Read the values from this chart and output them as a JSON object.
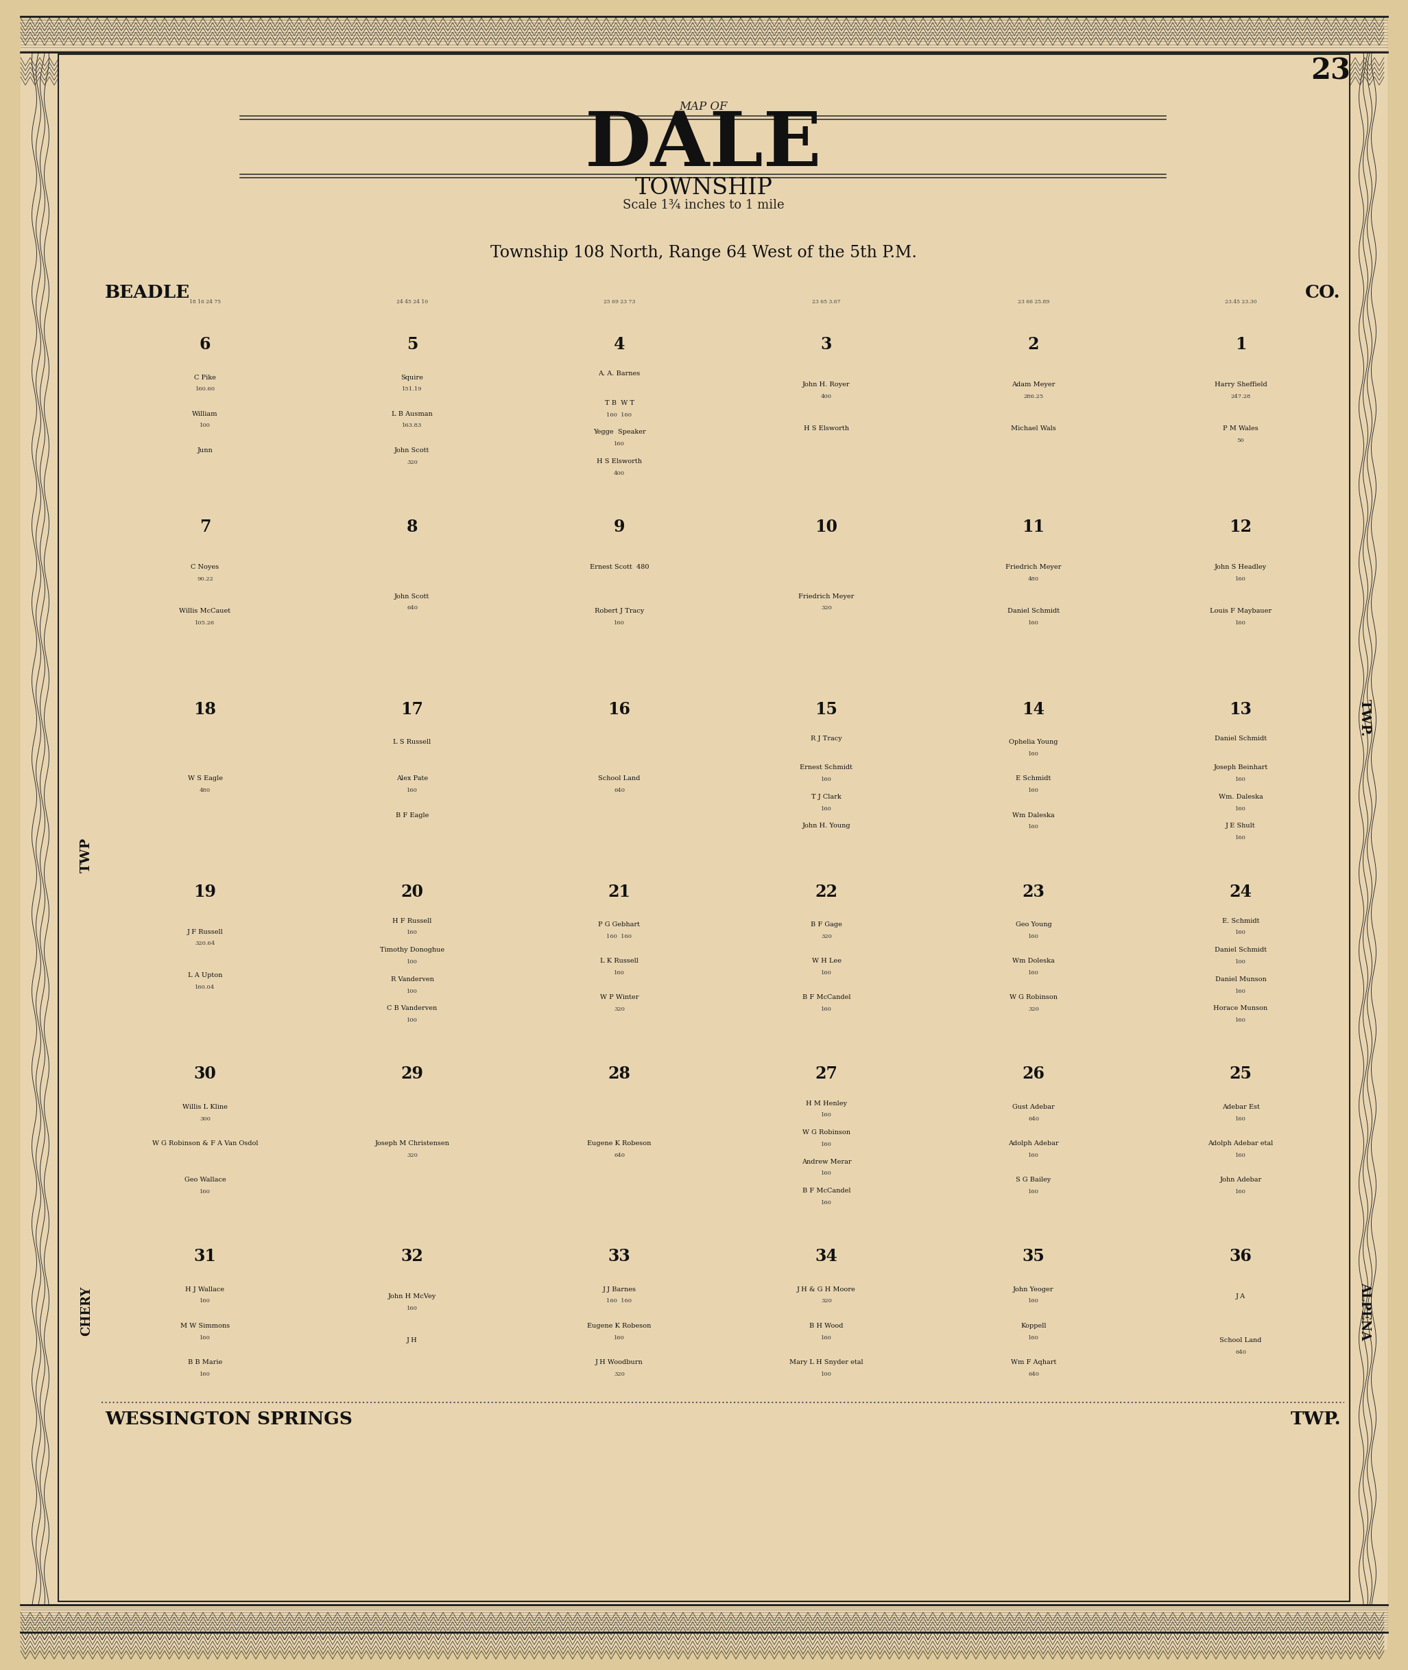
{
  "bg_color": "#ddc99a",
  "page_bg": "#e8d5b0",
  "map_bg": "#f5c0c0",
  "border_color": "#2a2a2a",
  "title_main": "DALE",
  "title_sub": "TOWNSHIP",
  "title_scale": "Scale 1¾ inches to 1 mile",
  "title_township": "Township 108 North, Range 64 West of the 5th P.M.",
  "page_number": "23",
  "label_top_left": "BEADLE",
  "label_top_right": "CO.",
  "label_left": "TWP",
  "label_right": "TWP.",
  "label_bottom_left": "WESSINGTON SPRINGS",
  "label_bottom_right": "TWP.",
  "label_left2": "CHERY",
  "label_right2": "ALPENA",
  "sections_data": [
    [
      0,
      0,
      "6",
      [
        "C Pike",
        "William",
        "Junn"
      ],
      [
        "160.60",
        "100"
      ]
    ],
    [
      1,
      0,
      "5",
      [
        "Squire",
        "L B Ausman",
        "John Scott"
      ],
      [
        "151.19",
        "163.83",
        "320"
      ]
    ],
    [
      2,
      0,
      "4",
      [
        "A. A. Barnes",
        "T B  W T",
        "Yegge  Speaker",
        "H S Elsworth"
      ],
      [
        "",
        "160  160",
        "160",
        "400"
      ]
    ],
    [
      3,
      0,
      "3",
      [
        "John H. Royer",
        "H S Elsworth"
      ],
      [
        "400",
        ""
      ]
    ],
    [
      4,
      0,
      "2",
      [
        "Adam Meyer",
        "Michael Wals"
      ],
      [
        "286.25",
        ""
      ]
    ],
    [
      5,
      0,
      "1",
      [
        "Harry Sheffield",
        "P M Wales"
      ],
      [
        "247.28",
        "50"
      ]
    ],
    [
      0,
      1,
      "7",
      [
        "C Noyes",
        "Willis McCauet"
      ],
      [
        "90.22",
        "105.26"
      ]
    ],
    [
      1,
      1,
      "8",
      [
        "John Scott"
      ],
      [
        "640"
      ]
    ],
    [
      2,
      1,
      "9",
      [
        "Ernest Scott  480",
        "Robert J Tracy"
      ],
      [
        "",
        "160"
      ]
    ],
    [
      3,
      1,
      "10",
      [
        "Friedrich Meyer"
      ],
      [
        "320"
      ]
    ],
    [
      4,
      1,
      "11",
      [
        "Friedrich Meyer",
        "Daniel Schmidt"
      ],
      [
        "480",
        "160"
      ]
    ],
    [
      5,
      1,
      "12",
      [
        "John S Headley",
        "Louis F Maybauer"
      ],
      [
        "160",
        "160"
      ]
    ],
    [
      0,
      2,
      "18",
      [
        "W S Eagle"
      ],
      [
        "480"
      ]
    ],
    [
      1,
      2,
      "17",
      [
        "L S Russell",
        "Alex Pate",
        "B F Eagle"
      ],
      [
        "",
        "160",
        ""
      ]
    ],
    [
      2,
      2,
      "16",
      [
        "School Land"
      ],
      [
        "640"
      ]
    ],
    [
      3,
      2,
      "15",
      [
        "R J Tracy",
        "Ernest Schmidt",
        "T J Clark",
        "John H. Young"
      ],
      [
        "",
        "160",
        "160",
        ""
      ]
    ],
    [
      4,
      2,
      "14",
      [
        "Ophelia Young",
        "E Schmidt",
        "Wm Daleska"
      ],
      [
        "160",
        "160",
        "160"
      ]
    ],
    [
      5,
      2,
      "13",
      [
        "Daniel Schmidt",
        "Joseph Beinhart",
        "Wm. Daleska",
        "J E Shult"
      ],
      [
        "",
        "160",
        "160",
        "160"
      ]
    ],
    [
      0,
      3,
      "19",
      [
        "J F Russell",
        "L A Upton"
      ],
      [
        "320.64",
        "160.04"
      ]
    ],
    [
      1,
      3,
      "20",
      [
        "H F Russell",
        "Timothy Donoghue",
        "R Vanderven",
        "C B Vanderven"
      ],
      [
        "160",
        "100",
        "100",
        "100"
      ]
    ],
    [
      2,
      3,
      "21",
      [
        "P G Gebhart",
        "L K Russell",
        "W P Winter"
      ],
      [
        "160  160",
        "160",
        "320"
      ]
    ],
    [
      3,
      3,
      "22",
      [
        "B F Gage",
        "W H Lee",
        "B F McCandel"
      ],
      [
        "320",
        "160",
        "160"
      ]
    ],
    [
      4,
      3,
      "23",
      [
        "Geo Young",
        "Wm Doleska",
        "W G Robinson"
      ],
      [
        "160",
        "160",
        "320"
      ]
    ],
    [
      5,
      3,
      "24",
      [
        "E. Schmidt",
        "Daniel Schmidt",
        "Daniel Munson",
        "Horace Munson"
      ],
      [
        "160",
        "100",
        "160",
        "160"
      ]
    ],
    [
      0,
      4,
      "30",
      [
        "Willis L Kline",
        "W G Robinson & F A Van Osdol",
        "Geo Wallace"
      ],
      [
        "300",
        "",
        "160"
      ]
    ],
    [
      1,
      4,
      "29",
      [
        "Joseph M Christensen"
      ],
      [
        "320"
      ]
    ],
    [
      2,
      4,
      "28",
      [
        "Eugene K Robeson"
      ],
      [
        "640"
      ]
    ],
    [
      3,
      4,
      "27",
      [
        "H M Henley",
        "W G Robinson",
        "Andrew Merar",
        "B F McCandel"
      ],
      [
        "160",
        "160",
        "160",
        "160"
      ]
    ],
    [
      4,
      4,
      "26",
      [
        "Gust Adebar",
        "Adolph Adebar",
        "S G Bailey"
      ],
      [
        "640",
        "160",
        "160"
      ]
    ],
    [
      5,
      4,
      "25",
      [
        "Adebar Est",
        "Adolph Adebar etal",
        "John Adebar"
      ],
      [
        "160",
        "160",
        "160"
      ]
    ],
    [
      0,
      5,
      "31",
      [
        "H J Wallace",
        "M W Simmons",
        "B B Marie"
      ],
      [
        "160",
        "160",
        "160"
      ]
    ],
    [
      1,
      5,
      "32",
      [
        "John H McVey",
        "J H"
      ],
      [
        "160",
        ""
      ]
    ],
    [
      2,
      5,
      "33",
      [
        "J J Barnes",
        "Eugene K Robeson",
        "J H Woodburn"
      ],
      [
        "160  160",
        "160",
        "320"
      ]
    ],
    [
      3,
      5,
      "34",
      [
        "J H & G H Moore",
        "B H Wood",
        "Mary L H Snyder etal"
      ],
      [
        "320",
        "160",
        "100"
      ]
    ],
    [
      4,
      5,
      "35",
      [
        "John Yeoger",
        "Koppell",
        "Wm F Aqhart"
      ],
      [
        "160",
        "160",
        "640"
      ]
    ],
    [
      5,
      5,
      "36",
      [
        "J A",
        "School Land"
      ],
      [
        "",
        "640"
      ]
    ]
  ]
}
